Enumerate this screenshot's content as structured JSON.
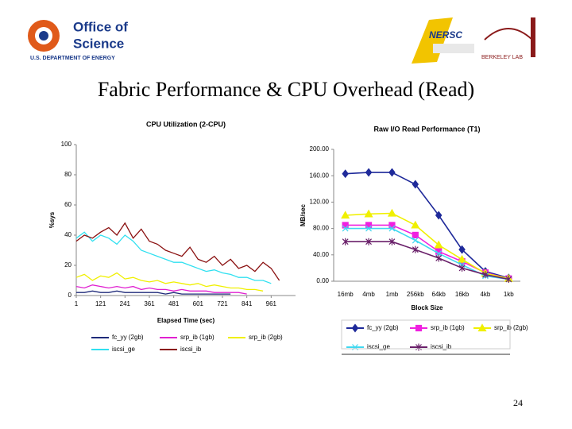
{
  "header": {
    "org_line1": "Office of",
    "org_line2": "Science",
    "org_sub": "U.S. DEPARTMENT OF ENERGY",
    "lab1": "NERSC",
    "lab2": "BERKELEY LAB"
  },
  "slide": {
    "title": "Fabric Performance & CPU Overhead (Read)",
    "page_number": "24"
  },
  "chart_data": [
    {
      "type": "line",
      "title": "CPU Utilization (2-CPU)",
      "x_label": "Elapsed Time (sec)",
      "y_label": "%sys",
      "x": [
        1,
        41,
        81,
        121,
        161,
        201,
        241,
        281,
        321,
        361,
        401,
        441,
        481,
        521,
        561,
        601,
        641,
        681,
        721,
        761,
        801,
        841,
        881,
        921,
        961,
        1001,
        1041,
        1081
      ],
      "xlim": [
        1,
        1081
      ],
      "xticks": [
        1,
        121,
        241,
        361,
        481,
        601,
        721,
        841,
        961
      ],
      "ylim": [
        0,
        100
      ],
      "yticks": [
        0,
        20,
        40,
        60,
        80,
        100
      ],
      "series": [
        {
          "name": "fc_yy (2gb)",
          "color": "#1f2a7a",
          "values": [
            2,
            2,
            3,
            2,
            2,
            3,
            2,
            2,
            2,
            2,
            2,
            1,
            2,
            1,
            1,
            1,
            1,
            1,
            1,
            1,
            null,
            null,
            null,
            null,
            null,
            null,
            null,
            null
          ]
        },
        {
          "name": "srp_ib (1gb)",
          "color": "#e020d0",
          "values": [
            6,
            5,
            7,
            6,
            5,
            6,
            5,
            6,
            4,
            5,
            4,
            4,
            3,
            4,
            3,
            3,
            3,
            2,
            2,
            2,
            2,
            1,
            null,
            null,
            null,
            null,
            null,
            null
          ]
        },
        {
          "name": "srp_ib (2gb)",
          "color": "#f0f000",
          "values": [
            12,
            14,
            10,
            13,
            12,
            15,
            11,
            12,
            10,
            9,
            10,
            8,
            9,
            8,
            7,
            8,
            6,
            7,
            6,
            5,
            5,
            4,
            4,
            3,
            null,
            null,
            null,
            null
          ]
        },
        {
          "name": "iscsi_ge",
          "color": "#30e0f0",
          "values": [
            38,
            42,
            36,
            40,
            38,
            34,
            40,
            36,
            30,
            28,
            26,
            24,
            22,
            22,
            20,
            18,
            16,
            17,
            15,
            14,
            12,
            12,
            10,
            10,
            8,
            null,
            null,
            null
          ]
        },
        {
          "name": "iscsi_ib",
          "color": "#8a1010",
          "values": [
            36,
            40,
            38,
            42,
            45,
            40,
            48,
            38,
            44,
            36,
            34,
            30,
            28,
            26,
            32,
            24,
            22,
            26,
            20,
            24,
            18,
            20,
            16,
            22,
            18,
            10,
            null,
            null
          ]
        }
      ]
    },
    {
      "type": "line",
      "title": "Raw I/O Read Performance (T1)",
      "x_label": "Block Size",
      "y_label": "MB/sec",
      "categories": [
        "16mb",
        "4mb",
        "1mb",
        "256kb",
        "64kb",
        "16kb",
        "4kb",
        "1kb"
      ],
      "ylim": [
        0,
        200
      ],
      "yticks": [
        {
          "value": 0,
          "label": "0.00"
        },
        {
          "value": 40,
          "label": "40.00"
        },
        {
          "value": 80,
          "label": "80.00"
        },
        {
          "value": 120,
          "label": "120.00"
        },
        {
          "value": 160,
          "label": "160.00"
        },
        {
          "value": 200,
          "label": "200.00"
        }
      ],
      "series": [
        {
          "name": "fc_yy (2gb)",
          "color": "#1f2a9a",
          "marker": "diamond",
          "values": [
            163,
            165,
            165,
            147,
            100,
            48,
            15,
            5
          ]
        },
        {
          "name": "srp_ib (1gb)",
          "color": "#f020e0",
          "marker": "square",
          "values": [
            85,
            85,
            85,
            70,
            45,
            30,
            13,
            4
          ]
        },
        {
          "name": "srp_ib (2gb)",
          "color": "#f0f000",
          "marker": "triangle",
          "values": [
            100,
            102,
            103,
            85,
            55,
            33,
            12,
            4
          ]
        },
        {
          "name": "iscsi_ge",
          "color": "#40d8f0",
          "marker": "x",
          "values": [
            80,
            80,
            80,
            62,
            42,
            25,
            8,
            3
          ]
        },
        {
          "name": "iscsi_ib",
          "color": "#6a206a",
          "marker": "star",
          "values": [
            60,
            60,
            60,
            48,
            35,
            20,
            10,
            3
          ]
        }
      ]
    }
  ]
}
